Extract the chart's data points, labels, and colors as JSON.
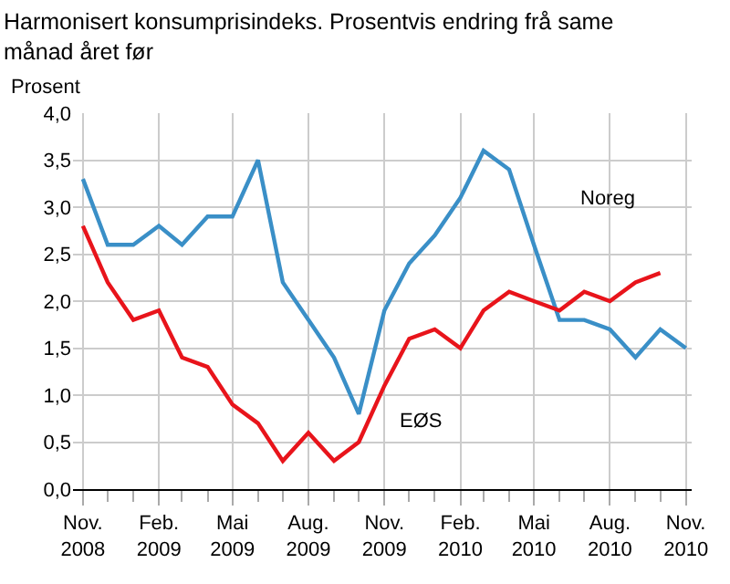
{
  "chart_data": {
    "type": "line",
    "title": "Harmonisert konsumprisindeks. Prosentvis endring frå same månad året før",
    "ylabel": "Prosent",
    "x": [
      "2008-11",
      "2008-12",
      "2009-01",
      "2009-02",
      "2009-03",
      "2009-04",
      "2009-05",
      "2009-06",
      "2009-07",
      "2009-08",
      "2009-09",
      "2009-10",
      "2009-11",
      "2009-12",
      "2010-01",
      "2010-02",
      "2010-03",
      "2010-04",
      "2010-05",
      "2010-06",
      "2010-07",
      "2010-08",
      "2010-09",
      "2010-10",
      "2010-11"
    ],
    "series": [
      {
        "name": "Noreg",
        "color": "#3a8fc7",
        "values": [
          3.3,
          2.6,
          2.6,
          2.8,
          2.6,
          2.9,
          2.9,
          3.5,
          2.2,
          1.8,
          1.4,
          0.8,
          1.9,
          2.4,
          2.7,
          3.1,
          3.6,
          3.4,
          2.6,
          1.8,
          1.8,
          1.7,
          1.4,
          1.7,
          1.5
        ]
      },
      {
        "name": "EØS",
        "color": "#e8141b",
        "values": [
          2.8,
          2.2,
          1.8,
          1.9,
          1.4,
          1.3,
          0.9,
          0.7,
          0.3,
          0.6,
          0.3,
          0.5,
          1.1,
          1.6,
          1.7,
          1.5,
          1.9,
          2.1,
          2.0,
          1.9,
          2.1,
          2.0,
          2.2,
          2.3,
          null
        ]
      }
    ],
    "xlim": [
      "2008-10-20",
      "2010-11-08"
    ],
    "xticks": [
      {
        "value": "2008-11",
        "label": "Nov.\n2008"
      },
      {
        "value": "2009-02",
        "label": "Feb.\n2009"
      },
      {
        "value": "2009-05",
        "label": "Mai\n2009"
      },
      {
        "value": "2009-08",
        "label": "Aug.\n2009"
      },
      {
        "value": "2009-11",
        "label": "Nov.\n2009"
      },
      {
        "value": "2010-02",
        "label": "Feb.\n2010"
      },
      {
        "value": "2010-05",
        "label": "Mai\n2010"
      },
      {
        "value": "2010-08",
        "label": "Aug.\n2010"
      },
      {
        "value": "2010-11",
        "label": "Nov.\n2010"
      }
    ],
    "ylim": [
      0,
      4
    ],
    "yticks": [
      {
        "value": 0,
        "label": "0,0"
      },
      {
        "value": 0.5,
        "label": "0,5"
      },
      {
        "value": 1,
        "label": "1,0"
      },
      {
        "value": 1.5,
        "label": "1,5"
      },
      {
        "value": 2,
        "label": "2,0"
      },
      {
        "value": 2.5,
        "label": "2,5"
      },
      {
        "value": 3,
        "label": "3,0"
      },
      {
        "value": 3.5,
        "label": "3,5"
      },
      {
        "value": 4,
        "label": "4,0"
      }
    ],
    "grid": true,
    "legend": false,
    "marker": "none",
    "line_style": "solid"
  }
}
